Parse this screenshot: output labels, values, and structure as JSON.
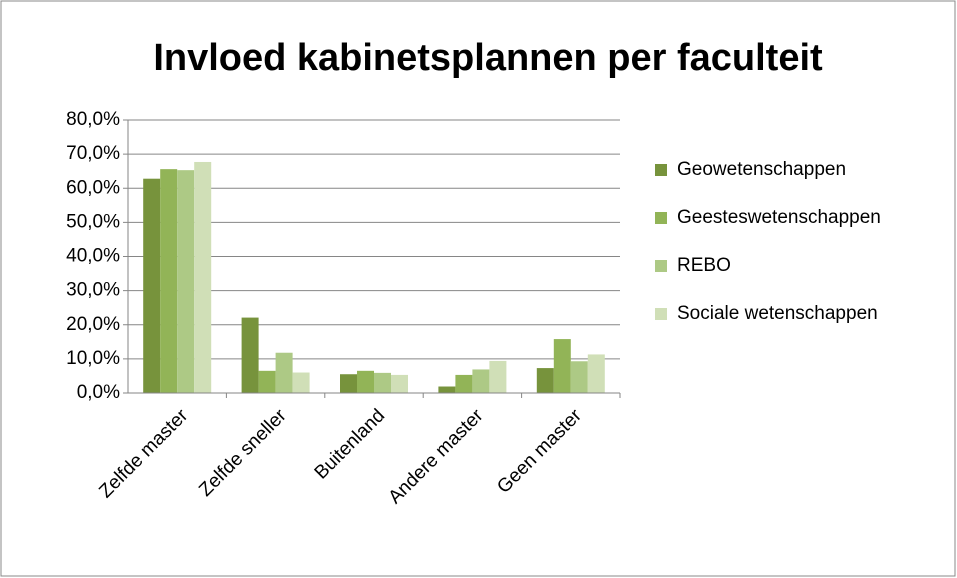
{
  "chart_data": {
    "type": "bar",
    "title": "Invloed kabinetsplannen per faculteit",
    "categories": [
      "Zelfde master",
      "Zelfde sneller",
      "Buitenland",
      "Andere master",
      "Geen master"
    ],
    "series": [
      {
        "name": "Geowetenschappen",
        "color": "#77933c",
        "values": [
          62.8,
          22.1,
          5.5,
          1.9,
          7.3
        ]
      },
      {
        "name": "Geesteswetenschappen",
        "color": "#92b457",
        "values": [
          65.6,
          6.5,
          6.5,
          5.3,
          15.8
        ]
      },
      {
        "name": "REBO",
        "color": "#adc985",
        "values": [
          65.3,
          11.8,
          5.9,
          6.9,
          9.3
        ]
      },
      {
        "name": "Sociale wetenschappen",
        "color": "#d0dfb7",
        "values": [
          67.7,
          6.0,
          5.3,
          9.4,
          11.3
        ]
      }
    ],
    "ylim": [
      0,
      80
    ],
    "yticks": [
      {
        "value": 0,
        "label": "0,0%"
      },
      {
        "value": 10,
        "label": "10,0%"
      },
      {
        "value": 20,
        "label": "20,0%"
      },
      {
        "value": 30,
        "label": "30,0%"
      },
      {
        "value": 40,
        "label": "40,0%"
      },
      {
        "value": 50,
        "label": "50,0%"
      },
      {
        "value": 60,
        "label": "60,0%"
      },
      {
        "value": 70,
        "label": "70,0%"
      },
      {
        "value": 80,
        "label": "80,0%"
      }
    ],
    "grid": true,
    "legend": "right"
  }
}
